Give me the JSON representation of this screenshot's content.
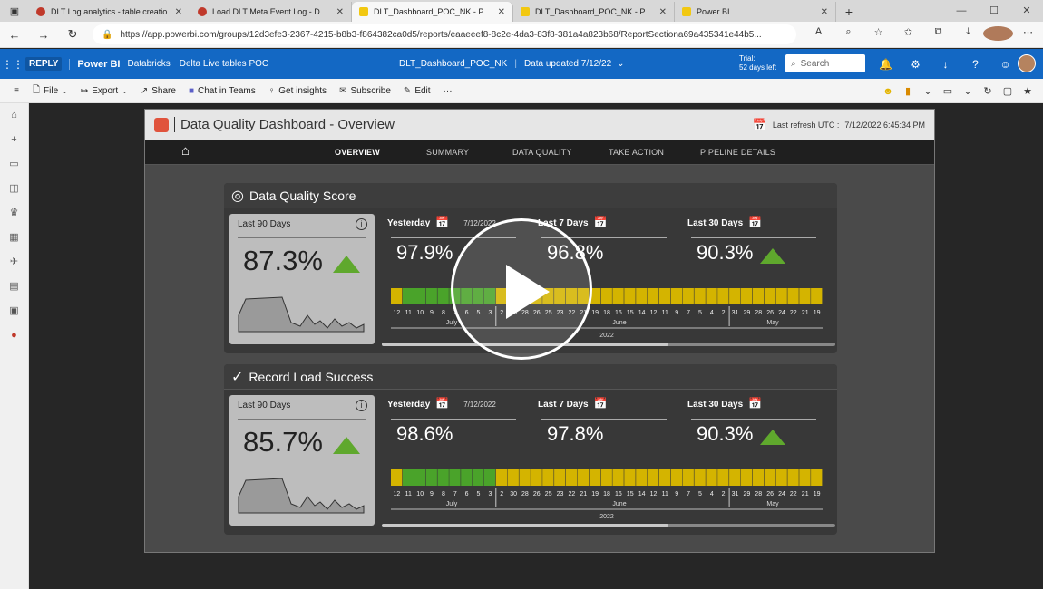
{
  "browser": {
    "tabs": [
      {
        "title": "DLT Log analytics - table creatio",
        "icon": "databricks-icon"
      },
      {
        "title": "Load DLT Meta Event Log - Data",
        "icon": "databricks-icon"
      },
      {
        "title": "DLT_Dashboard_POC_NK - Power",
        "icon": "powerbi-icon"
      },
      {
        "title": "DLT_Dashboard_POC_NK - Power",
        "icon": "powerbi-icon"
      },
      {
        "title": "Power BI",
        "icon": "powerbi-icon"
      }
    ],
    "url": "https://app.powerbi.com/groups/12d3efe3-2367-4215-b8b3-f864382ca0d5/reports/eaaeeef8-8c2e-4da3-83f8-381a4a823b68/ReportSectiona69a435341e44b5..."
  },
  "pbi_header": {
    "logo": "REPLY",
    "app": "Power BI",
    "workspace": "Databricks",
    "app_name": "Delta Live tables POC",
    "report": "DLT_Dashboard_POC_NK",
    "updated": "Data updated 7/12/22",
    "trial_line1": "Trial:",
    "trial_line2": "52 days left",
    "search_placeholder": "Search"
  },
  "toolbar": {
    "file": "File",
    "export": "Export",
    "share": "Share",
    "chat": "Chat in Teams",
    "insights": "Get insights",
    "subscribe": "Subscribe",
    "edit": "Edit",
    "more": "···"
  },
  "report": {
    "title": "Data Quality Dashboard - Overview",
    "refresh_label": "Last refresh UTC :",
    "refresh_value": "7/12/2022 6:45:34 PM",
    "tabs": [
      "OVERVIEW",
      "SUMMARY",
      "DATA QUALITY",
      "TAKE ACTION",
      "PIPELINE DETAILS"
    ]
  },
  "panels": [
    {
      "title": "Data Quality Score",
      "last90_label": "Last 90 Days",
      "last90_value": "87.3%",
      "yesterday_label": "Yesterday",
      "yesterday_date": "7/12/2022",
      "yesterday_value": "97.9%",
      "last7_label": "Last 7 Days",
      "last7_value": "96.8%",
      "last30_label": "Last 30 Days",
      "last30_value": "90.3%"
    },
    {
      "title": "Record Load Success",
      "last90_label": "Last 90 Days",
      "last90_value": "85.7%",
      "yesterday_label": "Yesterday",
      "yesterday_date": "7/12/2022",
      "yesterday_value": "98.6%",
      "last7_label": "Last 7 Days",
      "last7_value": "97.8%",
      "last30_label": "Last 30 Days",
      "last30_value": "90.3%"
    }
  ],
  "heat_axis": {
    "days": [
      "12",
      "11",
      "10",
      "9",
      "8",
      "7",
      "6",
      "5",
      "3",
      "2",
      "30",
      "28",
      "26",
      "25",
      "23",
      "22",
      "21",
      "19",
      "18",
      "16",
      "15",
      "14",
      "12",
      "11",
      "9",
      "7",
      "5",
      "4",
      "2",
      "31",
      "29",
      "28",
      "26",
      "24",
      "22",
      "21",
      "19"
    ],
    "months": [
      "July",
      "June",
      "May"
    ],
    "year": "2022"
  },
  "colors": {
    "green": "#4aa32a",
    "dark_green": "#3f8c2a",
    "yellow": "#d4b400",
    "powerbi_blue": "#1368c4"
  }
}
